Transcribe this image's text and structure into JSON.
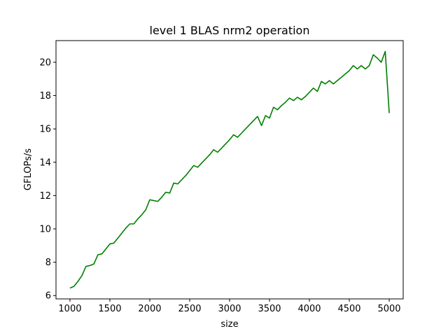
{
  "chart_data": {
    "type": "line",
    "title": "level 1 BLAS nrm2 operation",
    "xlabel": "size",
    "ylabel": "GFLOPs/s",
    "xlim": [
      825,
      5175
    ],
    "ylim": [
      5.8,
      21.3
    ],
    "xticks": [
      1000,
      1500,
      2000,
      2500,
      3000,
      3500,
      4000,
      4500,
      5000
    ],
    "yticks": [
      6,
      8,
      10,
      12,
      14,
      16,
      18,
      20
    ],
    "grid": false,
    "series": [
      {
        "color": "#008000",
        "x": [
          1000,
          1050,
          1100,
          1150,
          1200,
          1250,
          1300,
          1350,
          1400,
          1450,
          1500,
          1550,
          1600,
          1650,
          1700,
          1750,
          1800,
          1850,
          1900,
          1950,
          2000,
          2050,
          2100,
          2150,
          2200,
          2250,
          2300,
          2350,
          2400,
          2450,
          2500,
          2550,
          2600,
          2650,
          2700,
          2750,
          2800,
          2850,
          2900,
          2950,
          3000,
          3050,
          3100,
          3150,
          3200,
          3250,
          3300,
          3350,
          3400,
          3450,
          3500,
          3550,
          3600,
          3650,
          3700,
          3750,
          3800,
          3850,
          3900,
          3950,
          4000,
          4050,
          4100,
          4150,
          4200,
          4250,
          4300,
          4350,
          4400,
          4450,
          4500,
          4550,
          4600,
          4650,
          4700,
          4750,
          4800,
          4850,
          4900,
          4950,
          5000
        ],
        "values": [
          6.45,
          6.55,
          6.85,
          7.2,
          7.75,
          7.8,
          7.9,
          8.45,
          8.5,
          8.8,
          9.1,
          9.15,
          9.45,
          9.75,
          10.05,
          10.3,
          10.3,
          10.6,
          10.85,
          11.15,
          11.75,
          11.7,
          11.65,
          11.9,
          12.2,
          12.15,
          12.75,
          12.7,
          12.95,
          13.2,
          13.5,
          13.8,
          13.7,
          13.95,
          14.2,
          14.45,
          14.75,
          14.6,
          14.85,
          15.1,
          15.35,
          15.65,
          15.5,
          15.75,
          16.0,
          16.25,
          16.5,
          16.75,
          16.2,
          16.8,
          16.65,
          17.3,
          17.15,
          17.4,
          17.6,
          17.85,
          17.7,
          17.9,
          17.75,
          17.95,
          18.2,
          18.45,
          18.25,
          18.85,
          18.7,
          18.9,
          18.7,
          18.9,
          19.1,
          19.3,
          19.5,
          19.8,
          19.6,
          19.8,
          19.6,
          19.8,
          20.45,
          20.25,
          20.0,
          20.65,
          16.95
        ]
      }
    ]
  }
}
